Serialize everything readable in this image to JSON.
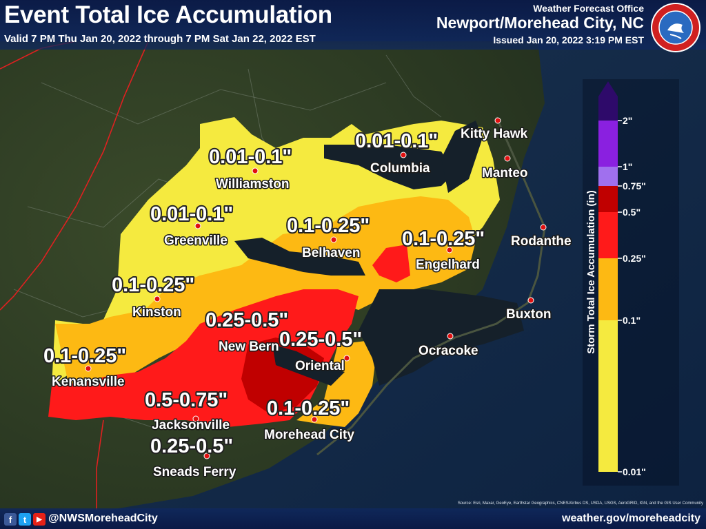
{
  "header": {
    "title": "Event Total Ice Accumulation",
    "valid": "Valid 7 PM Thu Jan 20, 2022 through 7 PM Sat Jan 22, 2022 EST",
    "office_top": "Weather Forecast Office",
    "office": "Newport/Morehead City, NC",
    "issued": "Issued Jan 20, 2022 3:19 PM EST",
    "logo_text": "NATIONAL WEATHER SERVICE"
  },
  "amount_labels": [
    {
      "text": "0.01-0.1\""
    },
    {
      "text": "0.01-0.1\""
    },
    {
      "text": "0.01-0.1\""
    },
    {
      "text": "0.1-0.25\""
    },
    {
      "text": "0.1-0.25\""
    },
    {
      "text": "0.1-0.25\""
    },
    {
      "text": "0.1-0.25\""
    },
    {
      "text": "0.25-0.5\""
    },
    {
      "text": "0.25-0.5\""
    },
    {
      "text": "0.5-0.75\""
    },
    {
      "text": "0.1-0.25\""
    },
    {
      "text": "0.25-0.5\""
    }
  ],
  "cities": [
    {
      "name": "Kitty Hawk"
    },
    {
      "name": "Columbia"
    },
    {
      "name": "Manteo"
    },
    {
      "name": "Williamston"
    },
    {
      "name": "Greenville"
    },
    {
      "name": "Belhaven"
    },
    {
      "name": "Engelhard"
    },
    {
      "name": "Rodanthe"
    },
    {
      "name": "Kinston"
    },
    {
      "name": "Buxton"
    },
    {
      "name": "New Bern"
    },
    {
      "name": "Oriental"
    },
    {
      "name": "Ocracoke"
    },
    {
      "name": "Kenansville"
    },
    {
      "name": "Jacksonville"
    },
    {
      "name": "Morehead City"
    },
    {
      "name": "Sneads Ferry"
    }
  ],
  "legend": {
    "title": "Storm Total Ice Accumulation (in)",
    "ticks": [
      "2\"",
      "1\"",
      "0.75\"",
      "0.5\"",
      "0.25\"",
      "0.1\"",
      "0.01\""
    ],
    "colors": {
      "c001": "#f5ea3f",
      "c01": "#fdb913",
      "c025": "#ff1a1a",
      "c05": "#c00000",
      "c075": "#a070ee",
      "c1": "#8a20e0",
      "c2": "#2e0a6a"
    }
  },
  "footer": {
    "social": [
      "f",
      "t",
      "▶"
    ],
    "handle": "@NWSMoreheadCity",
    "site": "weather.gov/moreheadcity",
    "source": "Source: Esri, Maxar, GeoEye, Earthstar Geographics, CNES/Airbus DS, USDA, USGS, AeroGRID, IGN, and the GIS User Community"
  }
}
